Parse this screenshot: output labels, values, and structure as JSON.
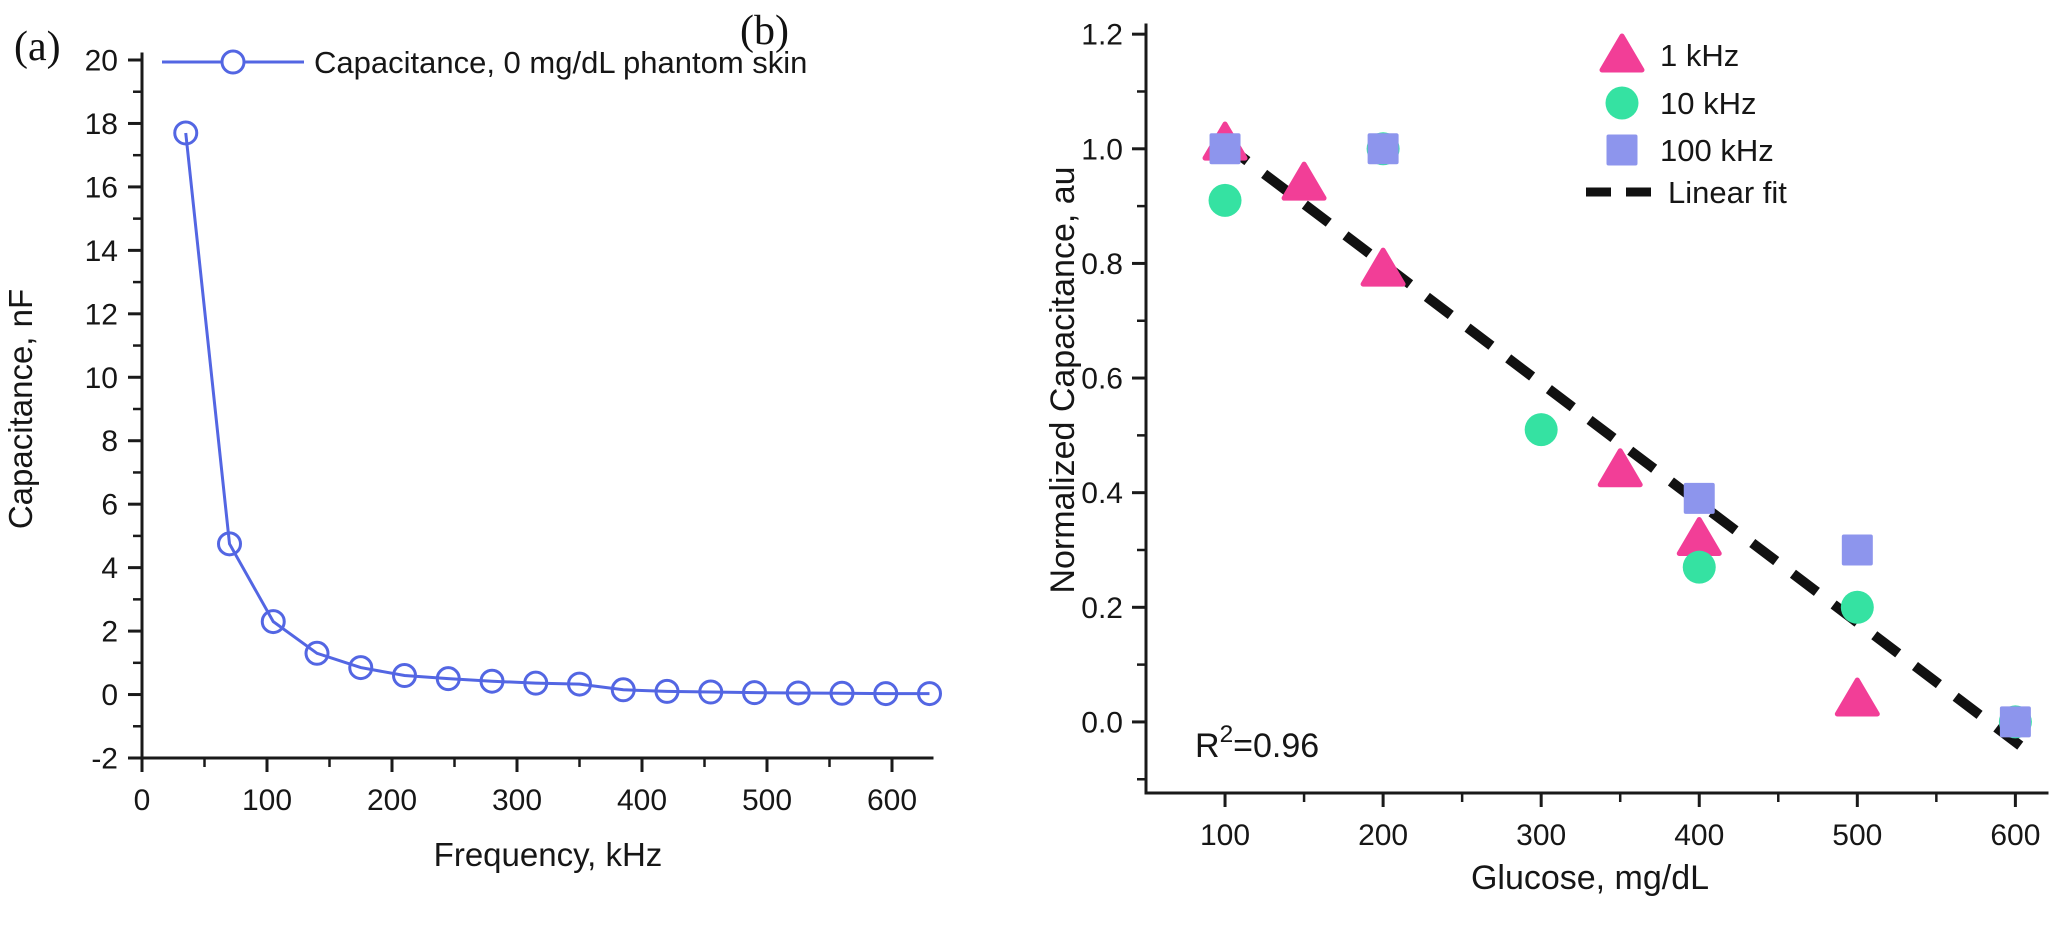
{
  "figure": {
    "panel_a_label": "(a)",
    "panel_b_label": "(b)",
    "background": "#ffffff",
    "text_color": "#161616",
    "axis_color": "#1a1a1a"
  },
  "colors": {
    "series_blue": "#5366E3",
    "series_pink": "#F23E97",
    "series_green": "#35E2A2",
    "series_purple": "#8D95ED",
    "fit_black": "#111111"
  },
  "chart_data": [
    {
      "id": "a",
      "type": "line",
      "xlabel": "Frequency, kHz",
      "ylabel": "Capacitance, nF",
      "xlim": [
        0,
        632
      ],
      "ylim": [
        -2,
        20
      ],
      "grid": false,
      "legend_position": "top-left-inside",
      "x_ticks": [
        {
          "v": 0,
          "label": "0"
        },
        {
          "v": 100,
          "label": "100"
        },
        {
          "v": 200,
          "label": "200"
        },
        {
          "v": 300,
          "label": "300"
        },
        {
          "v": 400,
          "label": "400"
        },
        {
          "v": 500,
          "label": "500"
        },
        {
          "v": 600,
          "label": "600"
        }
      ],
      "x_minor": [
        50,
        150,
        250,
        350,
        450,
        550
      ],
      "y_ticks": [
        {
          "v": -2,
          "label": "-2"
        },
        {
          "v": 0,
          "label": "0"
        },
        {
          "v": 2,
          "label": "2"
        },
        {
          "v": 4,
          "label": "4"
        },
        {
          "v": 6,
          "label": "6"
        },
        {
          "v": 8,
          "label": "8"
        },
        {
          "v": 10,
          "label": "10"
        },
        {
          "v": 12,
          "label": "12"
        },
        {
          "v": 14,
          "label": "14"
        },
        {
          "v": 16,
          "label": "16"
        },
        {
          "v": 18,
          "label": "18"
        },
        {
          "v": 20,
          "label": "20"
        }
      ],
      "y_minor": [
        -1,
        1,
        3,
        5,
        7,
        9,
        11,
        13,
        15,
        17,
        19
      ],
      "legend": [
        {
          "label": "Capacitance, 0 mg/dL phantom skin",
          "marker": "line-open-circle",
          "color": "#5366E3"
        }
      ],
      "series": [
        {
          "name": "Capacitance, 0 mg/dL phantom skin",
          "marker": "open-circle",
          "color": "#5366E3",
          "points": [
            [
              35,
              17.7
            ],
            [
              70,
              4.75
            ],
            [
              105,
              2.3
            ],
            [
              140,
              1.3
            ],
            [
              175,
              0.85
            ],
            [
              210,
              0.6
            ],
            [
              245,
              0.5
            ],
            [
              280,
              0.42
            ],
            [
              315,
              0.36
            ],
            [
              350,
              0.33
            ],
            [
              385,
              0.15
            ],
            [
              420,
              0.1
            ],
            [
              455,
              0.08
            ],
            [
              490,
              0.06
            ],
            [
              525,
              0.05
            ],
            [
              560,
              0.04
            ],
            [
              595,
              0.03
            ],
            [
              630,
              0.03
            ]
          ]
        }
      ]
    },
    {
      "id": "b",
      "type": "scatter",
      "xlabel": "Glucose, mg/dL",
      "ylabel": "Normalized Capacitance, au",
      "xlim": [
        50,
        620
      ],
      "ylim": [
        -0.124,
        1.216
      ],
      "grid": false,
      "legend_position": "top-right-inside",
      "x_ticks": [
        {
          "v": 100,
          "label": "100"
        },
        {
          "v": 200,
          "label": "200"
        },
        {
          "v": 300,
          "label": "300"
        },
        {
          "v": 400,
          "label": "400"
        },
        {
          "v": 500,
          "label": "500"
        },
        {
          "v": 600,
          "label": "600"
        }
      ],
      "x_minor": [
        150,
        250,
        350,
        450,
        550
      ],
      "y_ticks": [
        {
          "v": 0.0,
          "label": "0.0"
        },
        {
          "v": 0.2,
          "label": "0.2"
        },
        {
          "v": 0.4,
          "label": "0.4"
        },
        {
          "v": 0.6,
          "label": "0.6"
        },
        {
          "v": 0.8,
          "label": "0.8"
        },
        {
          "v": 1.0,
          "label": "1.0"
        },
        {
          "v": 1.2,
          "label": "1.2"
        }
      ],
      "y_minor": [
        -0.1,
        0.1,
        0.3,
        0.5,
        0.7,
        0.9,
        1.1
      ],
      "legend": [
        {
          "label": "1 kHz",
          "marker": "triangle",
          "color": "#F23E97"
        },
        {
          "label": "10 kHz",
          "marker": "circle",
          "color": "#35E2A2"
        },
        {
          "label": "100 kHz",
          "marker": "square",
          "color": "#8D95ED"
        },
        {
          "label": "Linear fit",
          "marker": "dash",
          "color": "#111111"
        }
      ],
      "series": [
        {
          "name": "1 kHz",
          "marker": "triangle",
          "color": "#F23E97",
          "points": [
            [
              100,
              1.01
            ],
            [
              150,
              0.94
            ],
            [
              200,
              0.79
            ],
            [
              350,
              0.44
            ],
            [
              400,
              0.32
            ],
            [
              500,
              0.04
            ]
          ]
        },
        {
          "name": "10 kHz",
          "marker": "circle",
          "color": "#35E2A2",
          "points": [
            [
              100,
              0.91
            ],
            [
              200,
              1.0
            ],
            [
              300,
              0.51
            ],
            [
              400,
              0.27
            ],
            [
              500,
              0.2
            ],
            [
              600,
              0.0
            ]
          ]
        },
        {
          "name": "100 kHz",
          "marker": "square",
          "color": "#8D95ED",
          "points": [
            [
              100,
              1.0
            ],
            [
              200,
              1.0
            ],
            [
              400,
              0.39
            ],
            [
              500,
              0.3
            ],
            [
              600,
              0.0
            ]
          ]
        }
      ],
      "fit_line": {
        "label": "Linear fit",
        "style": "dashed",
        "color": "#111111",
        "x1": 99,
        "y1": 1.01,
        "x2": 612,
        "y2": -0.06
      },
      "annotation": {
        "text": "R²=0.96",
        "base": "R",
        "sup": "2",
        "rest": "=0.96"
      }
    }
  ]
}
